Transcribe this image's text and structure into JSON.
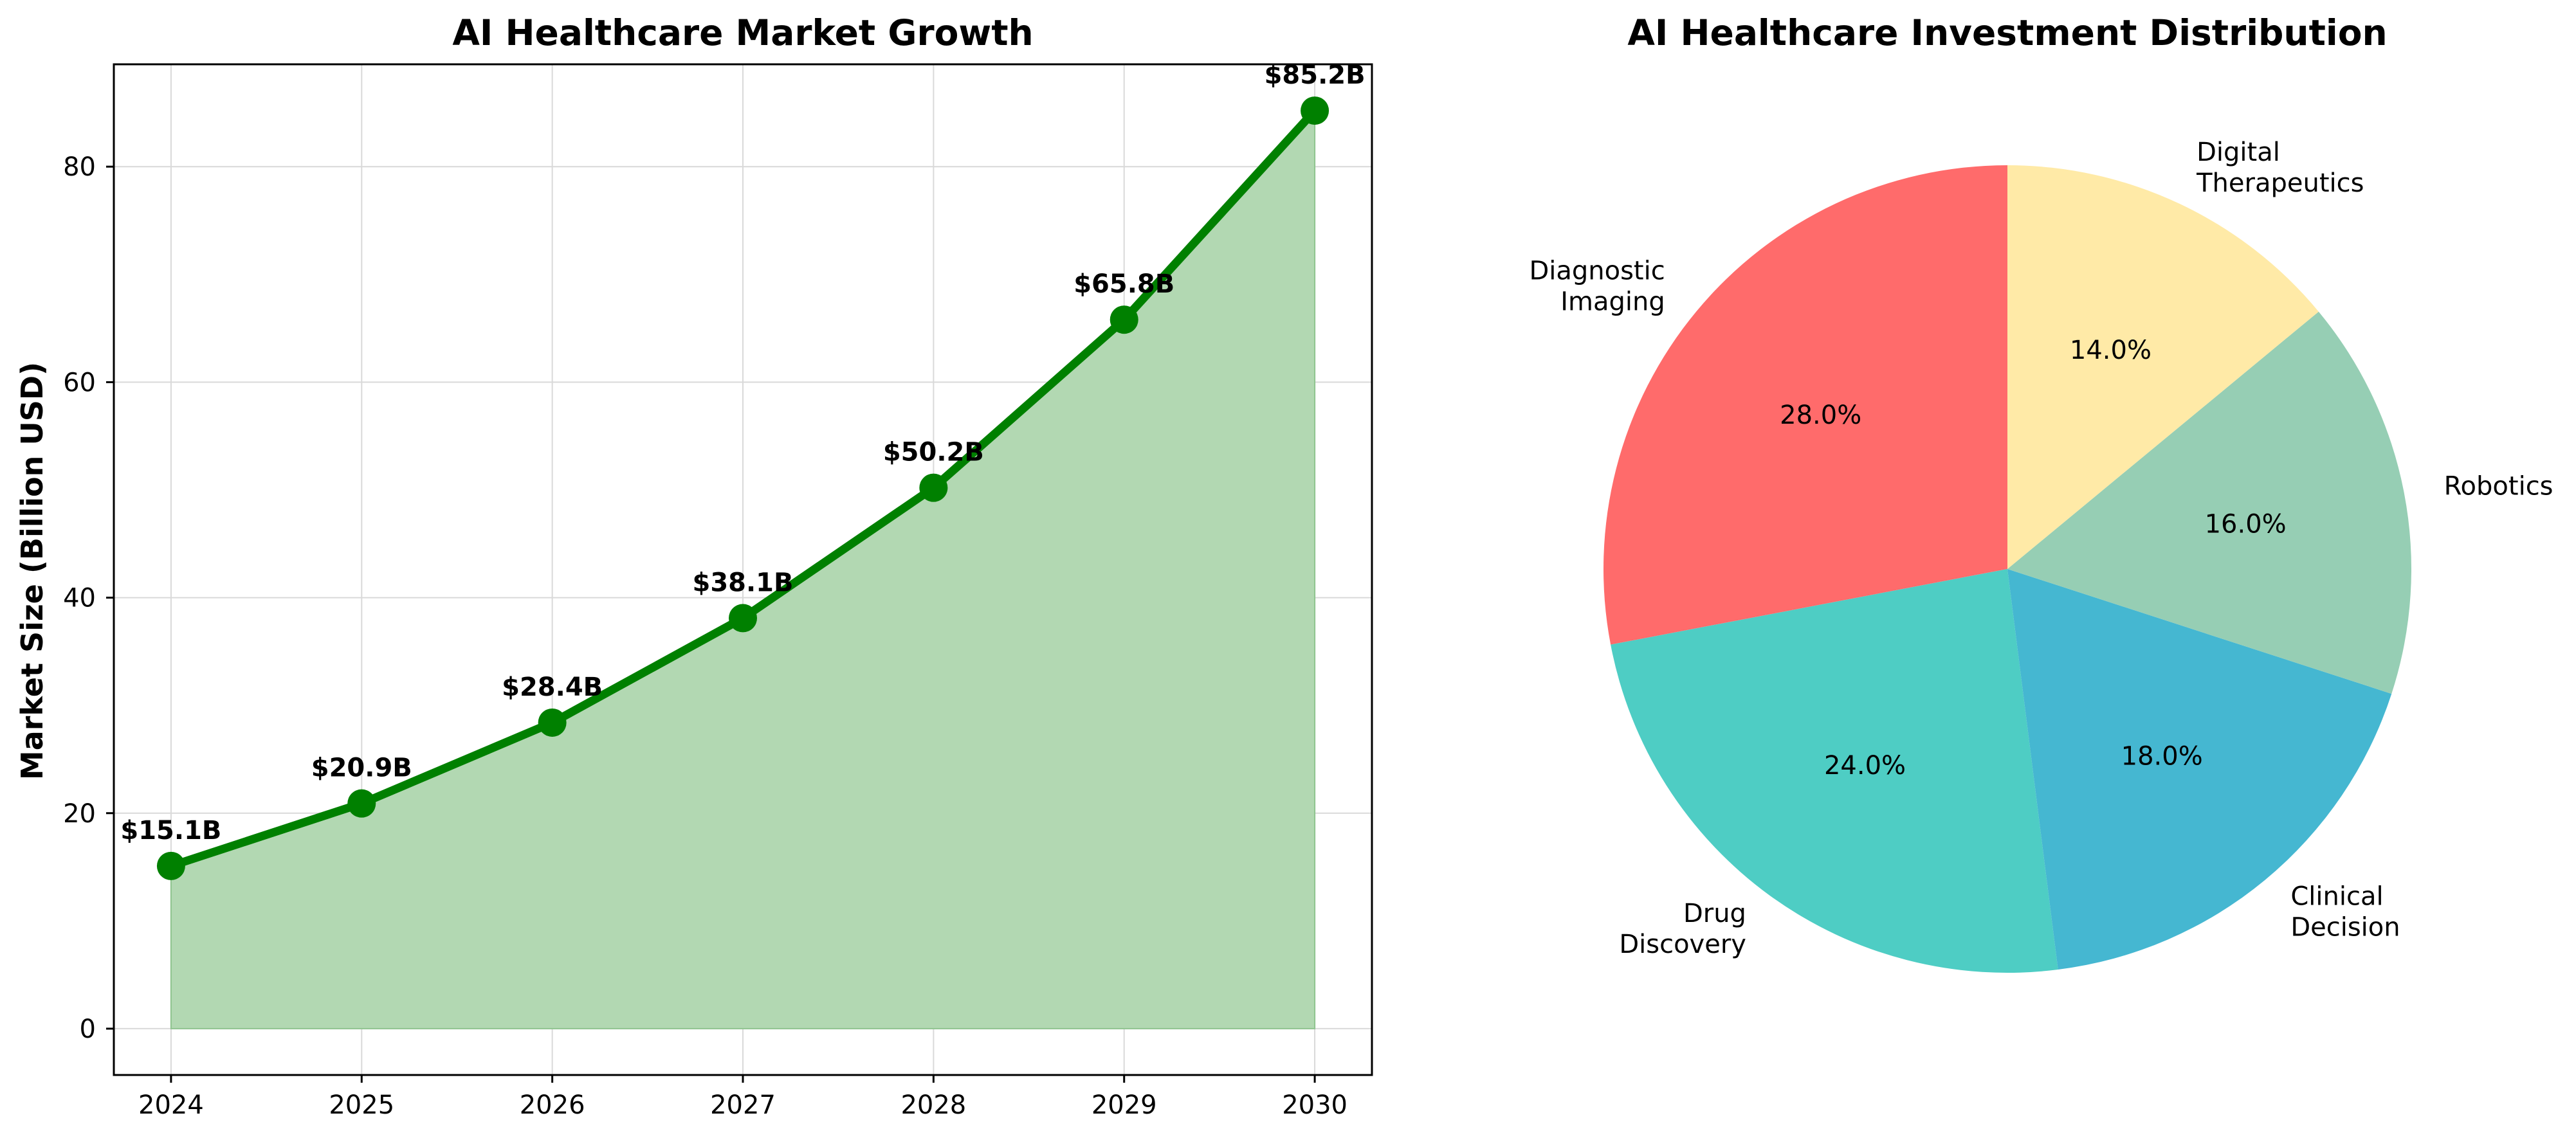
{
  "chart_data": [
    {
      "type": "line",
      "title": "AI Healthcare Market Growth",
      "xlabel": "",
      "ylabel": "Market Size (Billion USD)",
      "x": [
        2024,
        2025,
        2026,
        2027,
        2028,
        2029,
        2030
      ],
      "values": [
        15.1,
        20.9,
        28.4,
        38.1,
        50.2,
        65.8,
        85.2
      ],
      "data_labels": [
        "$15.1B",
        "$20.9B",
        "$28.4B",
        "$38.1B",
        "$50.2B",
        "$65.8B",
        "$85.2B"
      ],
      "xticks": [
        "2024",
        "2025",
        "2026",
        "2027",
        "2028",
        "2029",
        "2030"
      ],
      "yticks": [
        0,
        20,
        40,
        60,
        80
      ],
      "ylim": [
        -4.3,
        89.5
      ],
      "xlim": [
        2023.7,
        2030.3
      ],
      "area_fill": true,
      "grid": true,
      "colors": {
        "line": "#008000",
        "fill": "#b2d8b2"
      }
    },
    {
      "type": "pie",
      "title": "AI Healthcare Investment Distribution",
      "labels": [
        "Diagnostic Imaging",
        "Drug Discovery",
        "Clinical Decision",
        "Robotics",
        "Digital Therapeutics"
      ],
      "label_lines": [
        [
          "Diagnostic",
          "Imaging"
        ],
        [
          "Drug",
          "Discovery"
        ],
        [
          "Clinical",
          "Decision"
        ],
        [
          "Robotics"
        ],
        [
          "Digital",
          "Therapeutics"
        ]
      ],
      "values": [
        28.0,
        24.0,
        18.0,
        16.0,
        14.0
      ],
      "pct_labels": [
        "28.0%",
        "24.0%",
        "18.0%",
        "16.0%",
        "14.0%"
      ],
      "colors": [
        "#ff6b6b",
        "#4ecdc4",
        "#45b7d1",
        "#96ceb4",
        "#ffeaa7"
      ],
      "start_angle": 90,
      "direction": "counterclockwise"
    }
  ]
}
